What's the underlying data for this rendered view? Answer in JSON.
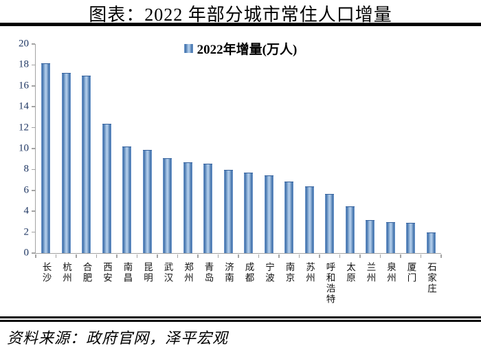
{
  "title": "图表：2022 年部分城市常住人口增量",
  "legend": {
    "label": "2022年增量(万人)",
    "marker_color": "#4f81bd"
  },
  "source": "资料来源：政府官网，泽平宏观",
  "colors": {
    "bar_edge": "#3e6fa9",
    "bar_center": "#a9c7e7",
    "axis": "#a3a3a3",
    "y_tick_label": "#203864",
    "rule": "#000000"
  },
  "chart_data": {
    "type": "bar",
    "title": "图表：2022 年部分城市常住人口增量",
    "legend_entries": [
      "2022年增量(万人)"
    ],
    "legend_position": "top-center",
    "grid": false,
    "categories": [
      "长沙",
      "杭州",
      "合肥",
      "西安",
      "南昌",
      "昆明",
      "武汉",
      "郑州",
      "青岛",
      "济南",
      "成都",
      "宁波",
      "南京",
      "苏州",
      "呼和浩特",
      "太原",
      "兰州",
      "泉州",
      "厦门",
      "石家庄"
    ],
    "values": [
      18.1,
      17.2,
      16.9,
      12.3,
      10.1,
      9.8,
      9.0,
      8.6,
      8.5,
      7.9,
      7.6,
      7.4,
      6.8,
      6.3,
      5.6,
      4.4,
      3.1,
      2.9,
      2.8,
      1.9
    ],
    "xlabel": "",
    "ylabel": "",
    "ylim": [
      0,
      20
    ],
    "ytick_step": 2,
    "ytick_labels": [
      "0",
      "2",
      "4",
      "6",
      "8",
      "10",
      "12",
      "14",
      "16",
      "18",
      "20"
    ]
  }
}
